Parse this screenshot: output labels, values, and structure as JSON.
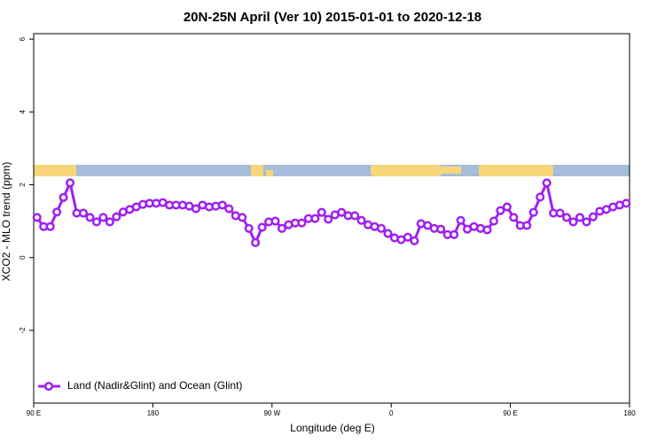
{
  "chart_data": {
    "type": "line",
    "title": "20N-25N April (Ver 10)   2015-01-01 to 2020-12-18",
    "xlabel": "Longitude (deg E)",
    "ylabel": "XCO2 - MLO trend (ppm)",
    "xlim": [
      90,
      540
    ],
    "ylim": [
      -4,
      6.15
    ],
    "xticks": [
      {
        "value": 90,
        "label": "90 E"
      },
      180,
      {
        "value": 270,
        "label": "90 W"
      },
      {
        "value": 360,
        "label": "0"
      },
      {
        "value": 450,
        "label": "90 E"
      },
      {
        "value": 540,
        "label": "180"
      }
    ],
    "yticks": [
      -2,
      0,
      2,
      4,
      6
    ],
    "legend": "bottom-left",
    "x": [
      92.5,
      97.5,
      102.5,
      107.5,
      112.5,
      117.5,
      122.5,
      127.5,
      132.5,
      137.5,
      142.5,
      147.5,
      152.5,
      157.5,
      162.5,
      167.5,
      172.5,
      177.5,
      182.5,
      187.5,
      192.5,
      197.5,
      202.5,
      207.5,
      212.5,
      217.5,
      222.5,
      227.5,
      232.5,
      237.5,
      242.5,
      247.5,
      252.5,
      257.5,
      262.5,
      267.5,
      272.5,
      277.5,
      282.5,
      287.5,
      292.5,
      297.5,
      302.5,
      307.5,
      312.5,
      317.5,
      322.5,
      327.5,
      332.5,
      337.5,
      342.5,
      347.5,
      352.5,
      357.5,
      362.5,
      367.5,
      372.5,
      377.5,
      382.5,
      387.5,
      392.5,
      397.5,
      402.5,
      407.5,
      412.5,
      417.5,
      422.5,
      427.5,
      432.5,
      437.5,
      442.5,
      447.5,
      452.5,
      457.5,
      462.5,
      467.5,
      472.5,
      477.5,
      482.5,
      487.5,
      492.5,
      497.5,
      502.5,
      507.5,
      512.5,
      517.5,
      522.5,
      527.5,
      532.5,
      537.5
    ],
    "series": [
      {
        "name": "Land (Nadir&Glint) and Ocean (Glint)",
        "color": "#a020f0",
        "values": [
          1.1,
          0.85,
          0.85,
          1.25,
          1.65,
          2.05,
          1.22,
          1.22,
          1.1,
          0.98,
          1.1,
          0.98,
          1.12,
          1.25,
          1.32,
          1.39,
          1.46,
          1.49,
          1.49,
          1.51,
          1.44,
          1.44,
          1.44,
          1.41,
          1.34,
          1.44,
          1.39,
          1.41,
          1.44,
          1.34,
          1.15,
          1.1,
          0.8,
          0.41,
          0.83,
          0.98,
          1.0,
          0.8,
          0.9,
          0.95,
          0.95,
          1.07,
          1.07,
          1.24,
          1.05,
          1.17,
          1.24,
          1.15,
          1.15,
          1.02,
          0.9,
          0.85,
          0.8,
          0.66,
          0.54,
          0.49,
          0.56,
          0.46,
          0.93,
          0.88,
          0.8,
          0.78,
          0.63,
          0.63,
          1.02,
          0.78,
          0.85,
          0.8,
          0.76,
          1.0,
          1.29,
          1.39,
          1.1,
          0.88,
          0.88,
          1.24,
          1.66,
          2.05,
          1.22,
          1.22,
          1.1,
          0.98,
          1.1,
          0.98,
          1.12,
          1.27,
          1.32,
          1.39,
          1.44,
          1.49
        ]
      }
    ]
  }
}
